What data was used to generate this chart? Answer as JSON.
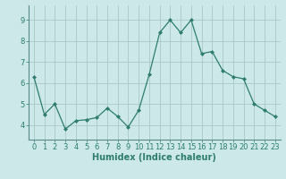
{
  "x": [
    0,
    1,
    2,
    3,
    4,
    5,
    6,
    7,
    8,
    9,
    10,
    11,
    12,
    13,
    14,
    15,
    16,
    17,
    18,
    19,
    20,
    21,
    22,
    23
  ],
  "y": [
    6.3,
    4.5,
    5.0,
    3.8,
    4.2,
    4.25,
    4.35,
    4.8,
    4.4,
    3.9,
    4.7,
    6.4,
    8.4,
    9.0,
    8.4,
    9.0,
    7.4,
    7.5,
    6.6,
    6.3,
    6.2,
    5.0,
    4.7,
    4.4
  ],
  "line_color": "#2e7d6e",
  "marker": "D",
  "marker_size": 2,
  "bg_color": "#cce8e8",
  "grid_color": "#aac8c8",
  "xlabel": "Humidex (Indice chaleur)",
  "xlabel_fontsize": 7,
  "tick_fontsize": 6,
  "ylim": [
    3.3,
    9.7
  ],
  "xlim": [
    -0.5,
    23.5
  ],
  "yticks": [
    4,
    5,
    6,
    7,
    8,
    9
  ],
  "xticks": [
    0,
    1,
    2,
    3,
    4,
    5,
    6,
    7,
    8,
    9,
    10,
    11,
    12,
    13,
    14,
    15,
    16,
    17,
    18,
    19,
    20,
    21,
    22,
    23
  ]
}
